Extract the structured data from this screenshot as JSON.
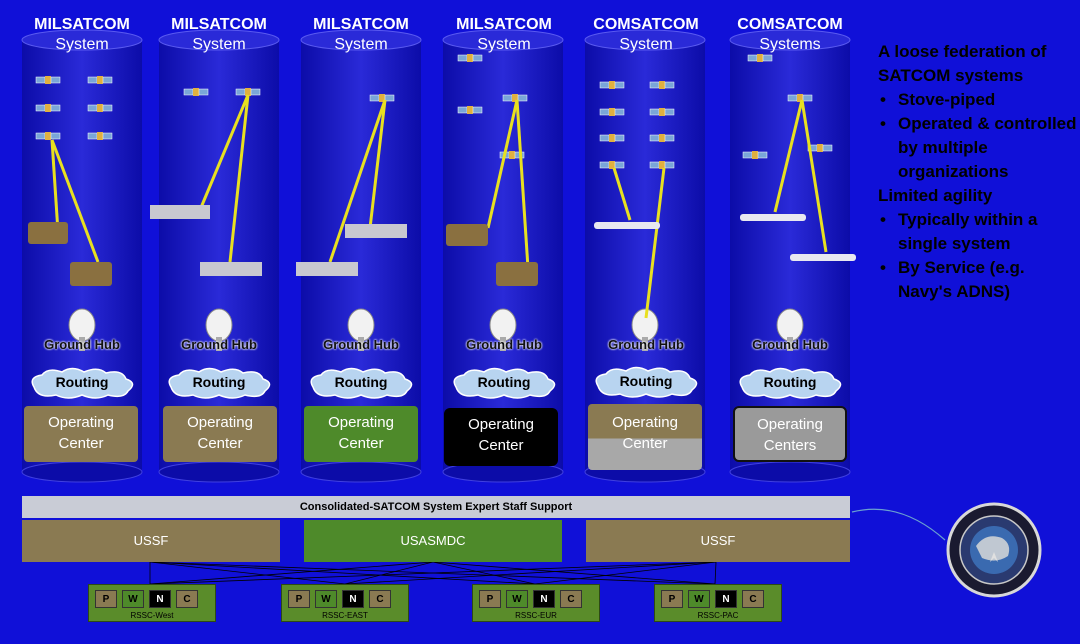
{
  "columns": [
    {
      "title": "MILSATCOM",
      "subtitle": "System",
      "hub": "Ground Hub",
      "routing": "Routing",
      "oc_line1": "Operating",
      "oc_line2": "Center",
      "oc_color": "#8a7a52",
      "oc_text": "#ffffff"
    },
    {
      "title": "MILSATCOM",
      "subtitle": "System",
      "hub": "Ground Hub",
      "routing": "Routing",
      "oc_line1": "Operating",
      "oc_line2": "Center",
      "oc_color": "#8a7a52",
      "oc_text": "#ffffff"
    },
    {
      "title": "MILSATCOM",
      "subtitle": "System",
      "hub": "Ground Hub",
      "routing": "Routing",
      "oc_line1": "Operating",
      "oc_line2": "Center",
      "oc_color": "#4e8a2a",
      "oc_text": "#ffffff"
    },
    {
      "title": "MILSATCOM",
      "subtitle": "System",
      "hub": "Ground Hub",
      "routing": "Routing",
      "oc_line1": "Operating",
      "oc_line2": "Center",
      "oc_color": "#000000",
      "oc_text": "#ffffff"
    },
    {
      "title": "COMSATCOM",
      "subtitle": "System",
      "hub": "Ground Hub",
      "routing": "Routing",
      "oc_line1": "Operating",
      "oc_line2": "Center",
      "oc_color": "#8a7a52",
      "oc_text": "#ffffff"
    },
    {
      "title": "COMSATCOM",
      "subtitle": "Systems",
      "hub": "Ground Hub",
      "routing": "Routing",
      "oc_line1": "Operating",
      "oc_line2": "Centers",
      "oc_color": "#9a9a9a",
      "oc_text": "#ffffff"
    }
  ],
  "side_text": {
    "heading1": "A loose federation of SATCOM systems",
    "bullet1": "Stove-piped",
    "bullet2": "Operated & controlled by multiple organizations",
    "heading2": "Limited agility",
    "bullet3": "Typically within a single system",
    "bullet4": "By Service (e.g. Navy's ADNS)"
  },
  "staff_bar": "Consolidated-SATCOM System Expert Staff Support",
  "orgs": [
    {
      "label": "USSF",
      "color": "#8a7a52"
    },
    {
      "label": "USASMDC",
      "color": "#4e8a2a"
    },
    {
      "label": "USSF",
      "color": "#8a7a52"
    }
  ],
  "rssc": [
    {
      "label": "RSSC-West",
      "cells": [
        "P",
        "W",
        "N",
        "C"
      ]
    },
    {
      "label": "RSSC-EAST",
      "cells": [
        "P",
        "W",
        "N",
        "C"
      ]
    },
    {
      "label": "RSSC-EUR",
      "cells": [
        "P",
        "W",
        "N",
        "C"
      ]
    },
    {
      "label": "RSSC-PAC",
      "cells": [
        "P",
        "W",
        "N",
        "C"
      ]
    }
  ],
  "seal_icon": "united-states-space-command-seal-icon",
  "colors": {
    "background": "#1010d8",
    "cylinder": "#2020c8",
    "beam": "#e8e020",
    "cell_p": "#8a7a52",
    "cell_w": "#4e8a2a",
    "cell_n": "#000000",
    "cell_c": "#8a7a52"
  }
}
